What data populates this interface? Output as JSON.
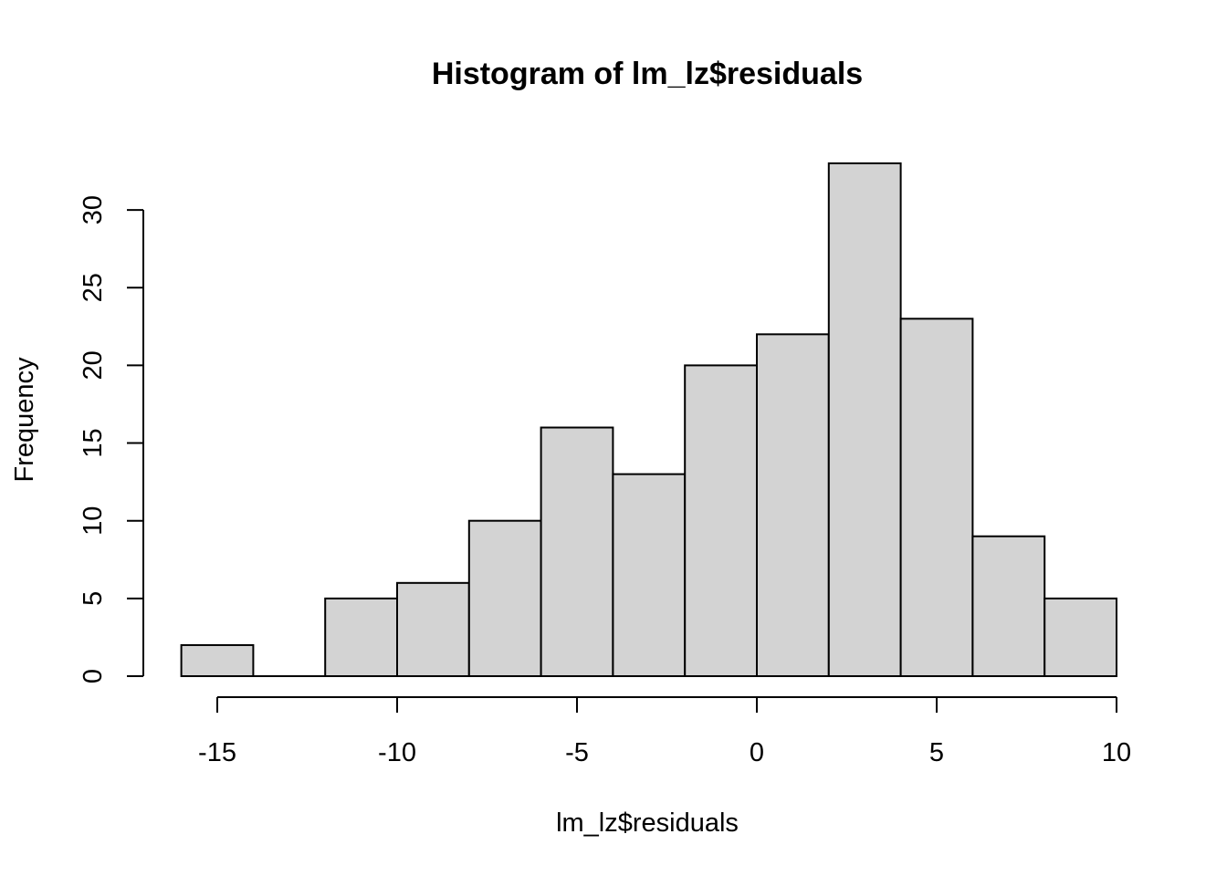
{
  "chart_data": {
    "type": "bar",
    "title": "Histogram of lm_lz$residuals",
    "xlabel": "lm_lz$residuals",
    "ylabel": "Frequency",
    "bins": [
      {
        "from": -16,
        "to": -14,
        "count": 2
      },
      {
        "from": -14,
        "to": -12,
        "count": 0
      },
      {
        "from": -12,
        "to": -10,
        "count": 5
      },
      {
        "from": -10,
        "to": -8,
        "count": 6
      },
      {
        "from": -8,
        "to": -6,
        "count": 10
      },
      {
        "from": -6,
        "to": -4,
        "count": 16
      },
      {
        "from": -4,
        "to": -2,
        "count": 13
      },
      {
        "from": -2,
        "to": 0,
        "count": 20
      },
      {
        "from": 0,
        "to": 2,
        "count": 22
      },
      {
        "from": 2,
        "to": 4,
        "count": 33
      },
      {
        "from": 4,
        "to": 6,
        "count": 23
      },
      {
        "from": 6,
        "to": 8,
        "count": 9
      },
      {
        "from": 8,
        "to": 10,
        "count": 5
      }
    ],
    "x_ticks": [
      -15,
      -10,
      -5,
      0,
      5,
      10
    ],
    "y_ticks": [
      0,
      5,
      10,
      15,
      20,
      25,
      30
    ],
    "xlim": [
      -16,
      10
    ],
    "ylim": [
      0,
      33
    ],
    "bar_fill": "#d3d3d3",
    "bar_stroke": "#000000",
    "grid": false,
    "legend": "none"
  }
}
